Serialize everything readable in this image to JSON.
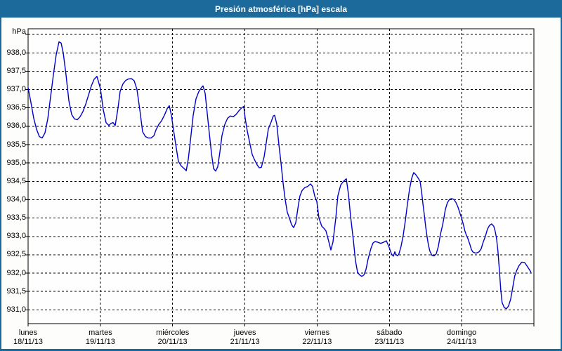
{
  "window": {
    "title": "Presión atmosférica [hPa] escala"
  },
  "colors": {
    "window_border": "#1c6a9c",
    "titlebar_bg": "#1c6a9c",
    "titlebar_text": "#ffffff",
    "background": "#fdfdfb",
    "plot_background": "#fefefe",
    "grid": "#000000",
    "frame": "#000000",
    "axis_text": "#000000",
    "line": "#0000cc"
  },
  "chart_data": {
    "type": "line",
    "title": "Presión atmosférica [hPa] escala",
    "y_unit_label": "hPa",
    "decimal_separator": ",",
    "grid_style": "dashed",
    "legend": "none",
    "ylim": [
      930.6,
      938.65
    ],
    "xlim_days": [
      0,
      7
    ],
    "y_axis": {
      "grid_values": [
        938.5,
        938.0,
        937.5,
        937.0,
        936.5,
        936.0,
        935.5,
        935.0,
        934.5,
        934.0,
        933.5,
        933.0,
        932.5,
        932.0,
        931.5,
        931.0
      ],
      "tick_values": [
        938.0,
        937.5,
        937.0,
        936.5,
        936.0,
        935.5,
        935.0,
        934.5,
        934.0,
        933.5,
        933.0,
        932.5,
        932.0,
        931.5,
        931.0
      ],
      "tick_labels": [
        "938,0",
        "937,5",
        "937,0",
        "936,5",
        "936,0",
        "935,5",
        "935,0",
        "934,5",
        "934,0",
        "933,5",
        "933,0",
        "932,5",
        "932,0",
        "931,5",
        "931,0"
      ]
    },
    "x_axis": {
      "tick_days": [
        0,
        1,
        2,
        3,
        4,
        5,
        6
      ],
      "categories": [
        {
          "name": "lunes",
          "date": "18/11/13",
          "day": 0
        },
        {
          "name": "martes",
          "date": "19/11/13",
          "day": 1
        },
        {
          "name": "miércoles",
          "date": "20/11/13",
          "day": 2
        },
        {
          "name": "jueves",
          "date": "21/11/13",
          "day": 3
        },
        {
          "name": "viernes",
          "date": "22/11/13",
          "day": 4
        },
        {
          "name": "sábado",
          "date": "23/11/13",
          "day": 5
        },
        {
          "name": "domingo",
          "date": "24/11/13",
          "day": 6
        }
      ]
    },
    "series": [
      {
        "unit": "hPa",
        "points": [
          [
            0.0,
            937.05
          ],
          [
            0.039,
            936.65
          ],
          [
            0.078,
            936.22
          ],
          [
            0.117,
            935.92
          ],
          [
            0.156,
            935.72
          ],
          [
            0.194,
            935.68
          ],
          [
            0.233,
            935.82
          ],
          [
            0.272,
            936.2
          ],
          [
            0.311,
            936.8
          ],
          [
            0.35,
            937.4
          ],
          [
            0.389,
            937.95
          ],
          [
            0.428,
            938.3
          ],
          [
            0.457,
            938.27
          ],
          [
            0.486,
            938.0
          ],
          [
            0.525,
            937.4
          ],
          [
            0.564,
            936.7
          ],
          [
            0.603,
            936.32
          ],
          [
            0.642,
            936.2
          ],
          [
            0.681,
            936.18
          ],
          [
            0.719,
            936.26
          ],
          [
            0.758,
            936.4
          ],
          [
            0.797,
            936.6
          ],
          [
            0.836,
            936.85
          ],
          [
            0.875,
            937.1
          ],
          [
            0.914,
            937.28
          ],
          [
            0.953,
            937.36
          ],
          [
            1.0,
            937.03
          ],
          [
            1.04,
            936.45
          ],
          [
            1.079,
            936.1
          ],
          [
            1.118,
            936.02
          ],
          [
            1.147,
            936.08
          ],
          [
            1.176,
            936.1
          ],
          [
            1.206,
            936.02
          ],
          [
            1.244,
            936.5
          ],
          [
            1.274,
            936.95
          ],
          [
            1.312,
            937.15
          ],
          [
            1.351,
            937.25
          ],
          [
            1.39,
            937.29
          ],
          [
            1.429,
            937.3
          ],
          [
            1.468,
            937.24
          ],
          [
            1.507,
            937.0
          ],
          [
            1.546,
            936.45
          ],
          [
            1.585,
            935.85
          ],
          [
            1.624,
            935.72
          ],
          [
            1.663,
            935.68
          ],
          [
            1.701,
            935.68
          ],
          [
            1.74,
            935.74
          ],
          [
            1.769,
            935.9
          ],
          [
            1.808,
            936.05
          ],
          [
            1.847,
            936.15
          ],
          [
            1.886,
            936.3
          ],
          [
            1.925,
            936.48
          ],
          [
            1.954,
            936.56
          ],
          [
            1.983,
            936.3
          ],
          [
            2.003,
            936.03
          ],
          [
            2.042,
            935.52
          ],
          [
            2.081,
            935.04
          ],
          [
            2.119,
            934.92
          ],
          [
            2.158,
            934.85
          ],
          [
            2.188,
            934.79
          ],
          [
            2.217,
            935.1
          ],
          [
            2.246,
            935.6
          ],
          [
            2.285,
            936.3
          ],
          [
            2.324,
            936.75
          ],
          [
            2.363,
            936.95
          ],
          [
            2.401,
            937.06
          ],
          [
            2.421,
            937.1
          ],
          [
            2.45,
            936.9
          ],
          [
            2.479,
            936.35
          ],
          [
            2.508,
            935.8
          ],
          [
            2.538,
            935.25
          ],
          [
            2.567,
            934.85
          ],
          [
            2.596,
            934.78
          ],
          [
            2.625,
            934.9
          ],
          [
            2.654,
            935.3
          ],
          [
            2.683,
            935.75
          ],
          [
            2.722,
            936.05
          ],
          [
            2.761,
            936.22
          ],
          [
            2.8,
            936.28
          ],
          [
            2.839,
            936.26
          ],
          [
            2.878,
            936.32
          ],
          [
            2.917,
            936.42
          ],
          [
            2.956,
            936.5
          ],
          [
            2.985,
            936.54
          ],
          [
            3.004,
            936.22
          ],
          [
            3.033,
            935.87
          ],
          [
            3.072,
            935.5
          ],
          [
            3.101,
            935.23
          ],
          [
            3.131,
            935.1
          ],
          [
            3.169,
            934.95
          ],
          [
            3.199,
            934.87
          ],
          [
            3.228,
            934.88
          ],
          [
            3.267,
            935.17
          ],
          [
            3.296,
            935.55
          ],
          [
            3.325,
            935.93
          ],
          [
            3.364,
            936.12
          ],
          [
            3.393,
            936.28
          ],
          [
            3.412,
            936.3
          ],
          [
            3.442,
            936.06
          ],
          [
            3.471,
            935.5
          ],
          [
            3.5,
            935.0
          ],
          [
            3.529,
            934.45
          ],
          [
            3.558,
            934.0
          ],
          [
            3.587,
            933.66
          ],
          [
            3.617,
            933.5
          ],
          [
            3.646,
            933.32
          ],
          [
            3.675,
            933.24
          ],
          [
            3.704,
            933.37
          ],
          [
            3.733,
            933.76
          ],
          [
            3.762,
            934.1
          ],
          [
            3.792,
            934.25
          ],
          [
            3.83,
            934.33
          ],
          [
            3.869,
            934.36
          ],
          [
            3.908,
            934.43
          ],
          [
            3.937,
            934.36
          ],
          [
            3.967,
            934.1
          ],
          [
            3.996,
            933.95
          ],
          [
            4.025,
            933.5
          ],
          [
            4.064,
            933.28
          ],
          [
            4.093,
            933.22
          ],
          [
            4.122,
            933.15
          ],
          [
            4.161,
            932.86
          ],
          [
            4.19,
            932.63
          ],
          [
            4.219,
            932.85
          ],
          [
            4.258,
            933.5
          ],
          [
            4.287,
            934.1
          ],
          [
            4.326,
            934.4
          ],
          [
            4.365,
            934.5
          ],
          [
            4.404,
            934.57
          ],
          [
            4.433,
            934.15
          ],
          [
            4.462,
            933.57
          ],
          [
            4.501,
            932.9
          ],
          [
            4.53,
            932.35
          ],
          [
            4.56,
            932.02
          ],
          [
            4.589,
            931.95
          ],
          [
            4.618,
            931.91
          ],
          [
            4.647,
            931.95
          ],
          [
            4.676,
            932.1
          ],
          [
            4.705,
            932.38
          ],
          [
            4.744,
            932.67
          ],
          [
            4.773,
            932.82
          ],
          [
            4.802,
            932.86
          ],
          [
            4.841,
            932.84
          ],
          [
            4.88,
            932.81
          ],
          [
            4.919,
            932.84
          ],
          [
            4.958,
            932.88
          ],
          [
            4.997,
            932.7
          ],
          [
            5.026,
            932.53
          ],
          [
            5.055,
            932.46
          ],
          [
            5.075,
            932.58
          ],
          [
            5.094,
            932.5
          ],
          [
            5.114,
            932.47
          ],
          [
            5.133,
            932.53
          ],
          [
            5.162,
            932.73
          ],
          [
            5.191,
            933.02
          ],
          [
            5.221,
            933.43
          ],
          [
            5.25,
            933.88
          ],
          [
            5.279,
            934.29
          ],
          [
            5.308,
            934.58
          ],
          [
            5.337,
            934.74
          ],
          [
            5.366,
            934.68
          ],
          [
            5.395,
            934.6
          ],
          [
            5.425,
            934.5
          ],
          [
            5.444,
            934.23
          ],
          [
            5.463,
            933.91
          ],
          [
            5.483,
            933.59
          ],
          [
            5.502,
            933.27
          ],
          [
            5.522,
            932.98
          ],
          [
            5.541,
            932.76
          ],
          [
            5.56,
            932.6
          ],
          [
            5.59,
            932.48
          ],
          [
            5.619,
            932.47
          ],
          [
            5.648,
            932.52
          ],
          [
            5.677,
            932.72
          ],
          [
            5.706,
            933.05
          ],
          [
            5.735,
            933.3
          ],
          [
            5.755,
            933.5
          ],
          [
            5.774,
            933.73
          ],
          [
            5.803,
            933.92
          ],
          [
            5.833,
            934.01
          ],
          [
            5.862,
            934.03
          ],
          [
            5.891,
            934.01
          ],
          [
            5.92,
            933.93
          ],
          [
            5.949,
            933.8
          ],
          [
            5.978,
            933.62
          ],
          [
            5.998,
            933.51
          ],
          [
            6.027,
            933.3
          ],
          [
            6.046,
            933.14
          ],
          [
            6.066,
            933.03
          ],
          [
            6.085,
            932.95
          ],
          [
            6.114,
            932.78
          ],
          [
            6.134,
            932.65
          ],
          [
            6.153,
            932.58
          ],
          [
            6.182,
            932.55
          ],
          [
            6.211,
            932.55
          ],
          [
            6.241,
            932.58
          ],
          [
            6.27,
            932.66
          ],
          [
            6.299,
            932.85
          ],
          [
            6.328,
            933.0
          ],
          [
            6.357,
            933.2
          ],
          [
            6.386,
            933.3
          ],
          [
            6.415,
            933.34
          ],
          [
            6.444,
            933.28
          ],
          [
            6.464,
            933.14
          ],
          [
            6.483,
            932.95
          ],
          [
            6.502,
            932.6
          ],
          [
            6.522,
            932.1
          ],
          [
            6.541,
            931.55
          ],
          [
            6.56,
            931.2
          ],
          [
            6.59,
            931.06
          ],
          [
            6.619,
            931.03
          ],
          [
            6.648,
            931.1
          ],
          [
            6.677,
            931.28
          ],
          [
            6.706,
            931.6
          ],
          [
            6.735,
            931.92
          ],
          [
            6.764,
            932.08
          ],
          [
            6.793,
            932.2
          ],
          [
            6.832,
            932.3
          ],
          [
            6.871,
            932.29
          ],
          [
            6.9,
            932.21
          ],
          [
            6.929,
            932.12
          ],
          [
            6.958,
            932.03
          ]
        ]
      }
    ]
  }
}
